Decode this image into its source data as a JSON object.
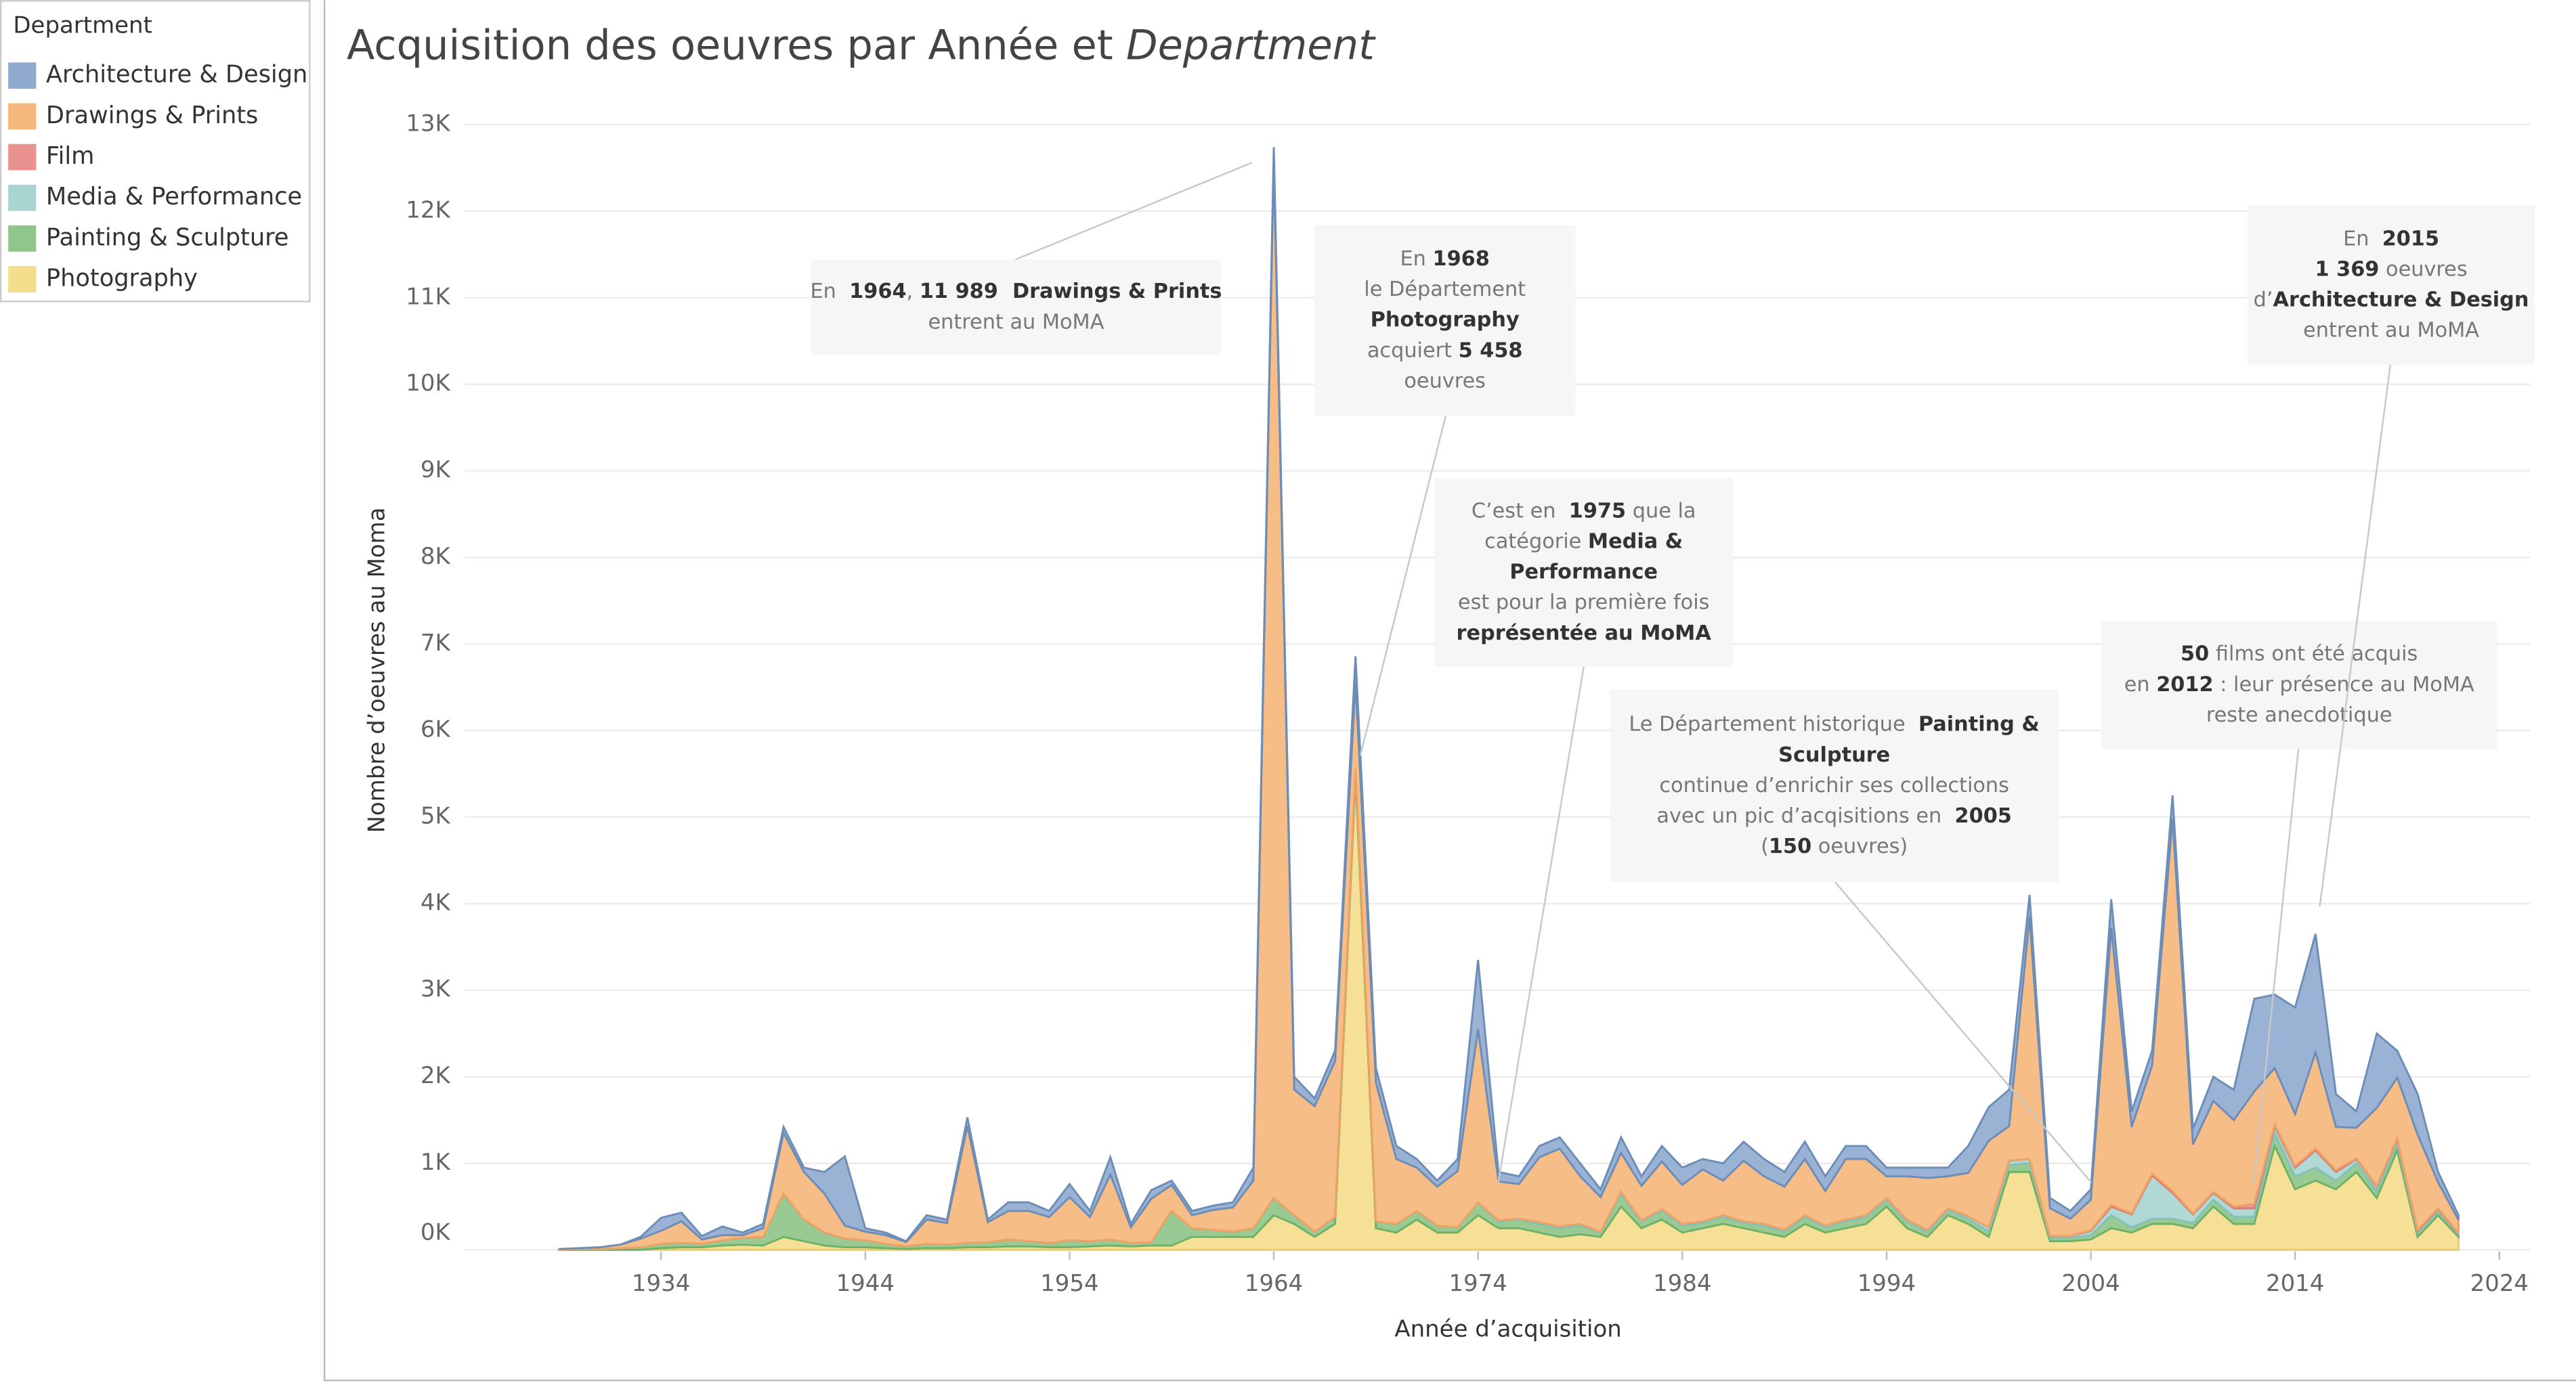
{
  "chart_data": {
    "type": "stacked_area",
    "title": [
      {
        "text": "Acquisition des oeuvres par Année et "
      },
      {
        "text": "Department",
        "italic": true
      }
    ],
    "legend_title": "Department",
    "y_label": "Nombre d’oeuvres au Moma",
    "x_label": "Année d’acquisition",
    "x": [
      1929,
      1930,
      1931,
      1932,
      1933,
      1934,
      1935,
      1936,
      1937,
      1938,
      1939,
      1940,
      1941,
      1942,
      1943,
      1944,
      1945,
      1946,
      1947,
      1948,
      1949,
      1950,
      1951,
      1952,
      1953,
      1954,
      1955,
      1956,
      1957,
      1958,
      1959,
      1960,
      1961,
      1962,
      1963,
      1964,
      1965,
      1966,
      1967,
      1968,
      1969,
      1970,
      1971,
      1972,
      1973,
      1974,
      1975,
      1976,
      1977,
      1978,
      1979,
      1980,
      1981,
      1982,
      1983,
      1984,
      1985,
      1986,
      1987,
      1988,
      1989,
      1990,
      1991,
      1992,
      1993,
      1994,
      1995,
      1996,
      1997,
      1998,
      1999,
      2000,
      2001,
      2002,
      2003,
      2004,
      2005,
      2006,
      2007,
      2008,
      2009,
      2010,
      2011,
      2012,
      2013,
      2014,
      2015,
      2016,
      2017,
      2018,
      2019,
      2020,
      2021,
      2022
    ],
    "series": [
      {
        "name": "Architecture & Design",
        "color": "#91abcf",
        "line": "#6d8db9",
        "values": [
          0,
          0,
          0,
          0,
          20,
          150,
          100,
          40,
          100,
          30,
          50,
          70,
          50,
          250,
          800,
          40,
          30,
          10,
          50,
          40,
          100,
          30,
          100,
          100,
          70,
          150,
          70,
          200,
          40,
          100,
          50,
          50,
          50,
          60,
          150,
          150,
          150,
          90,
          120,
          300,
          170,
          150,
          100,
          70,
          140,
          800,
          110,
          90,
          130,
          130,
          150,
          90,
          180,
          110,
          180,
          200,
          120,
          200,
          220,
          200,
          170,
          200,
          170,
          150,
          150,
          100,
          100,
          120,
          100,
          310,
          390,
          420,
          250,
          120,
          90,
          120,
          330,
          180,
          170,
          270,
          180,
          280,
          350,
          1070,
          850,
          1230,
          1369,
          380,
          190,
          860,
          310,
          470,
          120,
          55
        ]
      },
      {
        "name": "Drawings & Prints",
        "color": "#f6b77c",
        "line": "#eca466",
        "values": [
          5,
          10,
          20,
          40,
          100,
          150,
          250,
          50,
          60,
          30,
          100,
          700,
          550,
          450,
          150,
          100,
          100,
          50,
          280,
          250,
          1350,
          230,
          330,
          350,
          300,
          500,
          280,
          750,
          180,
          500,
          300,
          150,
          230,
          280,
          550,
          11989,
          1450,
          1450,
          1800,
          1000,
          1600,
          750,
          500,
          450,
          650,
          2000,
          450,
          400,
          750,
          900,
          550,
          400,
          450,
          400,
          550,
          450,
          600,
          400,
          700,
          550,
          500,
          650,
          400,
          700,
          650,
          250,
          500,
          600,
          370,
          500,
          1000,
          400,
          2800,
          320,
          200,
          350,
          3200,
          1000,
          1250,
          4300,
          800,
          1050,
          1000,
          1300,
          650,
          600,
          1111,
          500,
          350,
          900,
          700,
          1100,
          300,
          150
        ]
      },
      {
        "name": "Film",
        "color": "#e8918f",
        "line": "#e07774",
        "values": [
          0,
          0,
          0,
          0,
          0,
          0,
          0,
          0,
          0,
          0,
          0,
          0,
          0,
          0,
          0,
          0,
          0,
          0,
          0,
          0,
          0,
          0,
          0,
          0,
          0,
          0,
          0,
          0,
          0,
          0,
          0,
          0,
          0,
          0,
          0,
          0,
          0,
          0,
          0,
          0,
          0,
          0,
          0,
          0,
          0,
          0,
          0,
          0,
          0,
          0,
          0,
          0,
          0,
          0,
          0,
          0,
          0,
          0,
          0,
          0,
          0,
          0,
          0,
          0,
          0,
          0,
          0,
          0,
          0,
          0,
          0,
          0,
          0,
          0,
          0,
          10,
          20,
          10,
          20,
          20,
          10,
          10,
          20,
          50,
          20,
          20,
          20,
          20,
          10,
          10,
          10,
          10,
          10,
          5
        ]
      },
      {
        "name": "Media & Performance",
        "color": "#a9d5d1",
        "line": "#86c2bd",
        "values": [
          0,
          0,
          0,
          0,
          0,
          0,
          0,
          0,
          0,
          0,
          0,
          0,
          0,
          0,
          0,
          0,
          0,
          0,
          0,
          0,
          0,
          0,
          0,
          0,
          0,
          0,
          0,
          0,
          0,
          0,
          0,
          0,
          0,
          0,
          0,
          0,
          0,
          0,
          0,
          0,
          0,
          0,
          0,
          0,
          0,
          0,
          10,
          10,
          20,
          20,
          20,
          10,
          20,
          10,
          20,
          20,
          20,
          20,
          20,
          20,
          20,
          20,
          20,
          20,
          20,
          20,
          20,
          20,
          20,
          30,
          50,
          50,
          50,
          20,
          20,
          50,
          100,
          150,
          500,
          300,
          100,
          80,
          100,
          100,
          80,
          100,
          200,
          100,
          50,
          50,
          50,
          20,
          20,
          10
        ]
      },
      {
        "name": "Painting & Sculpture",
        "color": "#90c68a",
        "line": "#6fb168",
        "values": [
          5,
          10,
          10,
          20,
          30,
          50,
          50,
          40,
          60,
          80,
          100,
          500,
          250,
          150,
          100,
          80,
          50,
          30,
          50,
          40,
          50,
          60,
          80,
          60,
          50,
          80,
          60,
          70,
          40,
          40,
          400,
          100,
          80,
          60,
          100,
          200,
          100,
          60,
          80,
          100,
          80,
          100,
          100,
          80,
          60,
          150,
          80,
          100,
          100,
          100,
          100,
          50,
          150,
          80,
          100,
          80,
          60,
          80,
          60,
          80,
          60,
          80,
          60,
          80,
          80,
          80,
          80,
          60,
          60,
          60,
          60,
          80,
          100,
          40,
          40,
          50,
          150,
          60,
          60,
          60,
          60,
          80,
          80,
          80,
          150,
          150,
          150,
          100,
          100,
          80,
          80,
          50,
          50,
          30
        ]
      },
      {
        "name": "Photography",
        "color": "#f4dd8c",
        "line": "#e9cc66",
        "values": [
          0,
          0,
          0,
          0,
          0,
          20,
          30,
          30,
          50,
          60,
          50,
          150,
          100,
          50,
          30,
          30,
          20,
          10,
          20,
          20,
          30,
          30,
          40,
          40,
          30,
          30,
          40,
          50,
          40,
          50,
          50,
          150,
          150,
          150,
          150,
          400,
          300,
          150,
          300,
          5458,
          250,
          200,
          350,
          200,
          200,
          400,
          250,
          250,
          200,
          150,
          180,
          150,
          500,
          250,
          350,
          200,
          250,
          300,
          250,
          200,
          150,
          300,
          200,
          250,
          300,
          500,
          250,
          150,
          400,
          300,
          150,
          900,
          900,
          100,
          100,
          120,
          250,
          200,
          300,
          300,
          250,
          500,
          300,
          300,
          1200,
          700,
          800,
          700,
          900,
          600,
          1150,
          150,
          400,
          150
        ]
      }
    ],
    "xlim": [
      1924.4,
      2025.5
    ],
    "xticks": [
      1934,
      1944,
      1954,
      1964,
      1974,
      1984,
      1994,
      2004,
      2014,
      2024
    ],
    "ylim": [
      0,
      13300
    ],
    "yticks": [
      {
        "value": 0,
        "label": "0K"
      },
      {
        "value": 1000,
        "label": "1K"
      },
      {
        "value": 2000,
        "label": "2K"
      },
      {
        "value": 3000,
        "label": "3K"
      },
      {
        "value": 4000,
        "label": "4K"
      },
      {
        "value": 5000,
        "label": "5K"
      },
      {
        "value": 6000,
        "label": "6K"
      },
      {
        "value": 7000,
        "label": "7K"
      },
      {
        "value": 8000,
        "label": "8K"
      },
      {
        "value": 9000,
        "label": "9K"
      },
      {
        "value": 10000,
        "label": "10K"
      },
      {
        "value": 11000,
        "label": "11K"
      },
      {
        "value": 12000,
        "label": "12K"
      },
      {
        "value": 13000,
        "label": "13K"
      }
    ],
    "grid": true,
    "annotations": [
      [
        [
          {
            "text": "En  "
          },
          {
            "text": "1964",
            "bold": true
          },
          {
            "text": ", "
          },
          {
            "text": "11 989",
            "bold": true
          },
          {
            "text": "  Drawings & Prints",
            "bold": true
          }
        ],
        [
          {
            "text": "entrent au MoMA"
          }
        ]
      ],
      [
        [
          {
            "text": "En "
          },
          {
            "text": "1968",
            "bold": true
          }
        ],
        [
          {
            "text": "le Département"
          }
        ],
        [
          {
            "text": "Photography",
            "bold": true
          }
        ],
        [
          {
            "text": "acquiert "
          },
          {
            "text": "5 458",
            "bold": true
          }
        ],
        [
          {
            "text": "oeuvres"
          }
        ]
      ],
      [
        [
          {
            "text": "C’est en  "
          },
          {
            "text": "1975",
            "bold": true
          },
          {
            "text": " que la"
          }
        ],
        [
          {
            "text": "catégorie "
          },
          {
            "text": "Media &",
            "bold": true
          }
        ],
        [
          {
            "text": "Performance",
            "bold": true
          }
        ],
        [
          {
            "text": "est pour la première fois"
          }
        ],
        [
          {
            "text": "représentée au MoMA",
            "bold": true
          }
        ]
      ],
      [
        [
          {
            "text": "Le Département historique  "
          },
          {
            "text": "Painting &",
            "bold": true
          }
        ],
        [
          {
            "text": "Sculpture",
            "bold": true
          }
        ],
        [
          {
            "text": "continue d’enrichir ses collections"
          }
        ],
        [
          {
            "text": "avec un pic d’acqisitions en  "
          },
          {
            "text": "2005",
            "bold": true
          }
        ],
        [
          {
            "text": "("
          },
          {
            "text": "150",
            "bold": true
          },
          {
            "text": " oeuvres)"
          }
        ]
      ],
      [
        [
          {
            "text": "50",
            "bold": true
          },
          {
            "text": " films ont été acquis"
          }
        ],
        [
          {
            "text": "en "
          },
          {
            "text": "2012",
            "bold": true
          },
          {
            "text": " : leur présence au MoMA"
          }
        ],
        [
          {
            "text": "reste anecdotique"
          }
        ]
      ],
      [
        [
          {
            "text": "En  "
          },
          {
            "text": "2015",
            "bold": true
          }
        ],
        [
          {
            "text": "1 369",
            "bold": true
          },
          {
            "text": " oeuvres"
          }
        ],
        [
          {
            "text": "d’"
          },
          {
            "text": "Architecture & Design",
            "bold": true
          }
        ],
        [
          {
            "text": "entrent au MoMA"
          }
        ]
      ]
    ]
  }
}
